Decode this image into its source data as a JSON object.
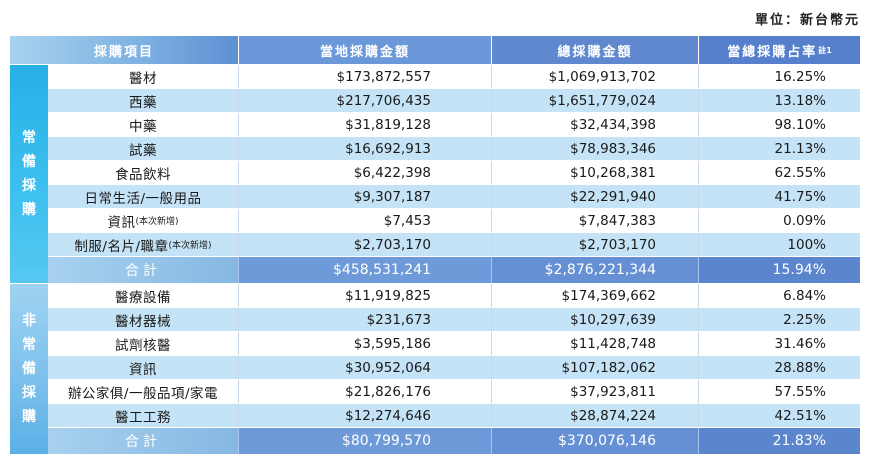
{
  "unit_label": "單位：新台幣元",
  "headers": {
    "item": "採購項目",
    "local": "當地採購金額",
    "total": "總採購金額",
    "ratio": "當總採購占率",
    "ratio_note": "註1"
  },
  "sections": [
    {
      "label": [
        "常",
        "備",
        "採",
        "購"
      ],
      "rows": [
        {
          "item": "醫材",
          "note": "",
          "local": "$173,872,557",
          "total": "$1,069,913,702",
          "ratio": "16.25%"
        },
        {
          "item": "西藥",
          "note": "",
          "local": "$217,706,435",
          "total": "$1,651,779,024",
          "ratio": "13.18%"
        },
        {
          "item": "中藥",
          "note": "",
          "local": "$31,819,128",
          "total": "$32,434,398",
          "ratio": "98.10%"
        },
        {
          "item": "試藥",
          "note": "",
          "local": "$16,692,913",
          "total": "$78,983,346",
          "ratio": "21.13%"
        },
        {
          "item": "食品飲料",
          "note": "",
          "local": "$6,422,398",
          "total": "$10,268,381",
          "ratio": "62.55%"
        },
        {
          "item": "日常生活/一般用品",
          "note": "",
          "local": "$9,307,187",
          "total": "$22,291,940",
          "ratio": "41.75%"
        },
        {
          "item": "資訊",
          "note": "(本次新增)",
          "local": "$7,453",
          "total": "$7,847,383",
          "ratio": "0.09%"
        },
        {
          "item": "制服/名片/職章",
          "note": "(本次新增)",
          "local": "$2,703,170",
          "total": "$2,703,170",
          "ratio": "100%"
        }
      ],
      "total_row": {
        "label": "合計",
        "local": "$458,531,241",
        "total": "$2,876,221,344",
        "ratio": "15.94%"
      }
    },
    {
      "label": [
        "非",
        "常",
        "備",
        "採",
        "購"
      ],
      "rows": [
        {
          "item": "醫療設備",
          "note": "",
          "local": "$11,919,825",
          "total": "$174,369,662",
          "ratio": "6.84%"
        },
        {
          "item": "醫材器械",
          "note": "",
          "local": "$231,673",
          "total": "$10,297,639",
          "ratio": "2.25%"
        },
        {
          "item": "試劑核醫",
          "note": "",
          "local": "$3,595,186",
          "total": "$11,428,748",
          "ratio": "31.46%"
        },
        {
          "item": "資訊",
          "note": "",
          "local": "$30,952,064",
          "total": "$107,182,062",
          "ratio": "28.88%"
        },
        {
          "item": "辦公家俱/一般品項/家電",
          "note": "",
          "local": "$21,826,176",
          "total": "$37,923,811",
          "ratio": "57.55%"
        },
        {
          "item": "醫工工務",
          "note": "",
          "local": "$12,274,646",
          "total": "$28,874,224",
          "ratio": "42.51%"
        }
      ],
      "total_row": {
        "label": "合計",
        "local": "$80,799,570",
        "total": "$370,076,146",
        "ratio": "21.83%"
      }
    }
  ]
}
